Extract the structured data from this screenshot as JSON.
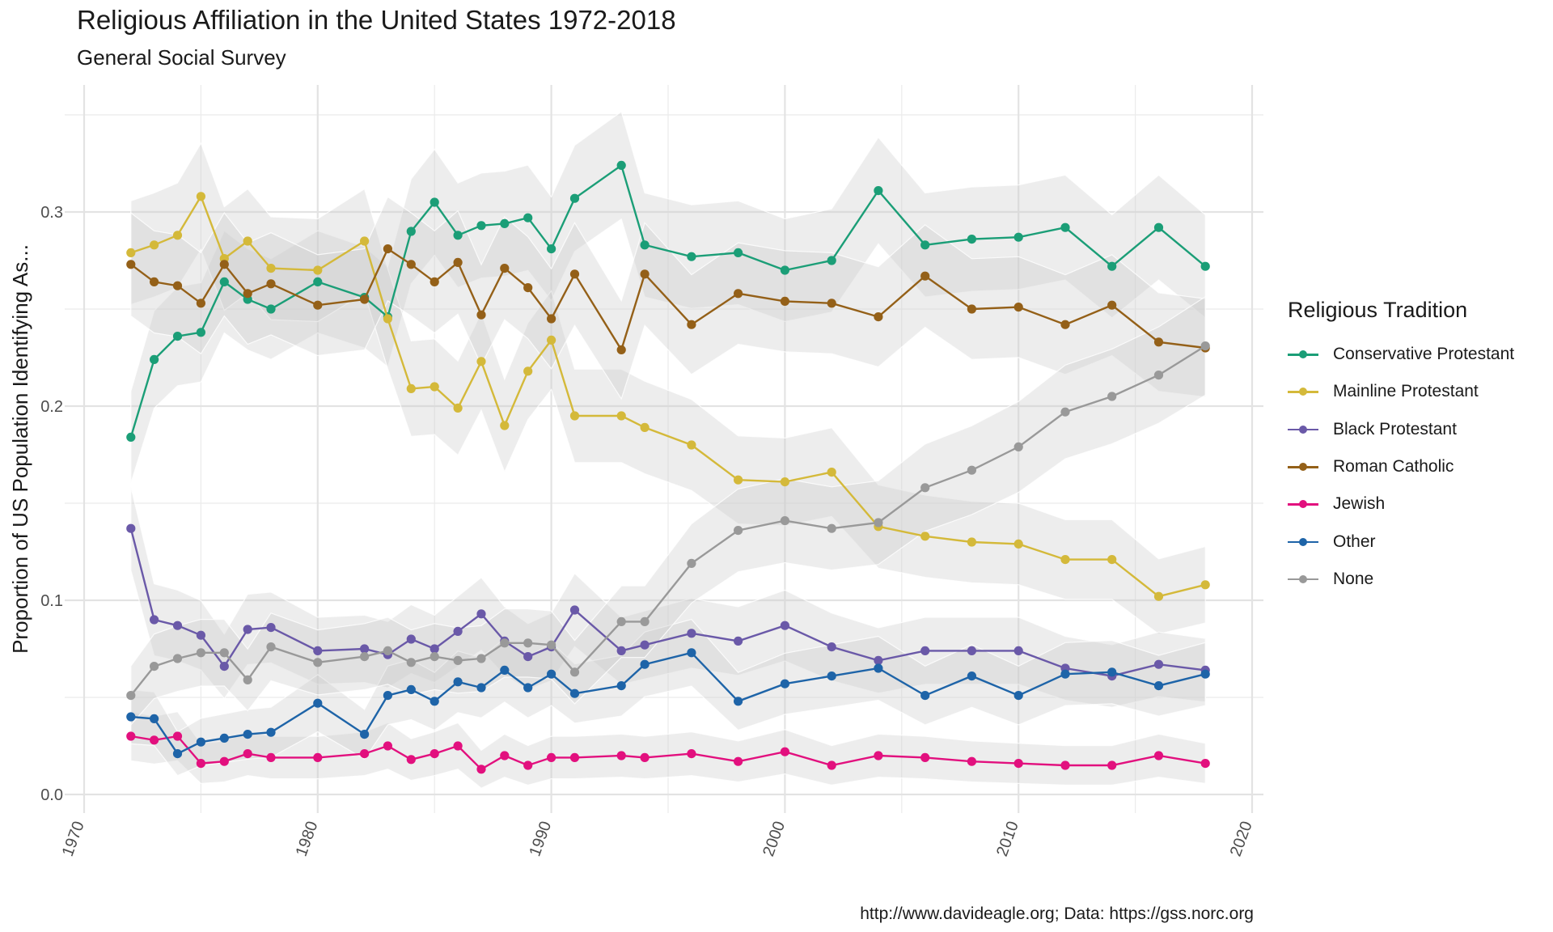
{
  "chart_data": {
    "type": "line",
    "title": "Religious Affiliation in the United States 1972-2018",
    "subtitle": "General Social Survey",
    "caption": "http://www.davideagle.org; Data: https://gss.norc.org",
    "ylabel": "Proportion of US Population Identifying As...",
    "xlabel": "",
    "xlim": [
      1970,
      2020
    ],
    "ylim": [
      0,
      0.35
    ],
    "x_ticks": [
      "1970",
      "1980",
      "1990",
      "2000",
      "2010",
      "2020"
    ],
    "y_ticks": [
      "0.0",
      "0.1",
      "0.2",
      "0.3"
    ],
    "grid": true,
    "confidence_band": true,
    "legend": {
      "title": "Religious Tradition",
      "position": "right"
    },
    "years": [
      1972,
      1973,
      1974,
      1975,
      1976,
      1977,
      1978,
      1980,
      1982,
      1983,
      1984,
      1985,
      1986,
      1987,
      1988,
      1989,
      1990,
      1991,
      1993,
      1994,
      1996,
      1998,
      2000,
      2002,
      2004,
      2006,
      2008,
      2010,
      2012,
      2014,
      2016,
      2018
    ],
    "series": [
      {
        "name": "Conservative Protestant",
        "color": "#1b9e77",
        "values": [
          0.184,
          0.224,
          0.236,
          0.238,
          0.264,
          0.255,
          0.25,
          0.264,
          0.256,
          0.246,
          0.29,
          0.305,
          0.288,
          0.293,
          0.294,
          0.297,
          0.281,
          0.307,
          0.324,
          0.283,
          0.277,
          0.279,
          0.27,
          0.275,
          0.311,
          0.283,
          0.286,
          0.287,
          0.292,
          0.272,
          0.292,
          0.272
        ]
      },
      {
        "name": "Mainline Protestant",
        "color": "#d4b93a",
        "values": [
          0.279,
          0.283,
          0.288,
          0.308,
          0.276,
          0.285,
          0.271,
          0.27,
          0.285,
          0.245,
          0.209,
          0.21,
          0.199,
          0.223,
          0.19,
          0.218,
          0.234,
          0.195,
          0.195,
          0.189,
          0.18,
          0.162,
          0.161,
          0.166,
          0.138,
          0.133,
          0.13,
          0.129,
          0.121,
          0.121,
          0.102,
          0.108
        ]
      },
      {
        "name": "Black Protestant",
        "color": "#6a59a8",
        "values": [
          0.137,
          0.09,
          0.087,
          0.082,
          0.066,
          0.085,
          0.086,
          0.074,
          0.075,
          0.072,
          0.08,
          0.075,
          0.084,
          0.093,
          0.079,
          0.071,
          0.076,
          0.095,
          0.074,
          0.077,
          0.083,
          0.079,
          0.087,
          0.076,
          0.069,
          0.074,
          0.074,
          0.074,
          0.065,
          0.061,
          0.067,
          0.064
        ]
      },
      {
        "name": "Roman Catholic",
        "color": "#946018",
        "values": [
          0.273,
          0.264,
          0.262,
          0.253,
          0.273,
          0.258,
          0.263,
          0.252,
          0.255,
          0.281,
          0.273,
          0.264,
          0.274,
          0.247,
          0.271,
          0.261,
          0.245,
          0.268,
          0.229,
          0.268,
          0.242,
          0.258,
          0.254,
          0.253,
          0.246,
          0.267,
          0.25,
          0.251,
          0.242,
          0.252,
          0.233,
          0.23
        ]
      },
      {
        "name": "Jewish",
        "color": "#e2107e",
        "values": [
          0.03,
          0.028,
          0.03,
          0.016,
          0.017,
          0.021,
          0.019,
          0.019,
          0.021,
          0.025,
          0.018,
          0.021,
          0.025,
          0.013,
          0.02,
          0.015,
          0.019,
          0.019,
          0.02,
          0.019,
          0.021,
          0.017,
          0.022,
          0.015,
          0.02,
          0.019,
          0.017,
          0.016,
          0.015,
          0.015,
          0.02,
          0.016
        ]
      },
      {
        "name": "Other",
        "color": "#1e64a8",
        "values": [
          0.04,
          0.039,
          0.021,
          0.027,
          0.029,
          0.031,
          0.032,
          0.047,
          0.031,
          0.051,
          0.054,
          0.048,
          0.058,
          0.055,
          0.064,
          0.055,
          0.062,
          0.052,
          0.056,
          0.067,
          0.073,
          0.048,
          0.057,
          0.061,
          0.065,
          0.051,
          0.061,
          0.051,
          0.062,
          0.063,
          0.056,
          0.062
        ]
      },
      {
        "name": "None",
        "color": "#999999",
        "values": [
          0.051,
          0.066,
          0.07,
          0.073,
          0.073,
          0.059,
          0.076,
          0.068,
          0.071,
          0.074,
          0.068,
          0.071,
          0.069,
          0.07,
          0.078,
          0.078,
          0.077,
          0.063,
          0.089,
          0.089,
          0.119,
          0.136,
          0.141,
          0.137,
          0.14,
          0.158,
          0.167,
          0.179,
          0.197,
          0.205,
          0.216,
          0.231
        ]
      }
    ]
  }
}
